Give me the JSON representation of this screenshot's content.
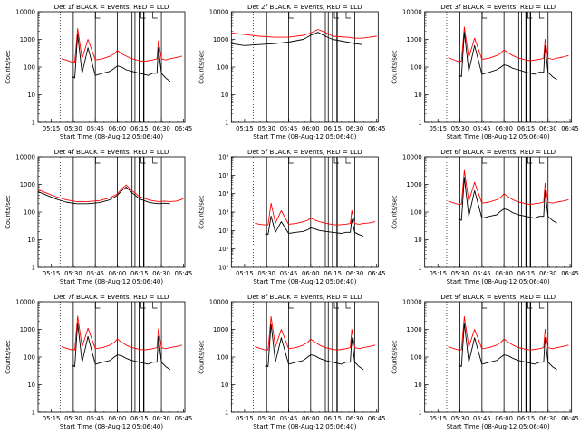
{
  "figure": {
    "colors": {
      "events": "#000000",
      "lld": "#ff0000",
      "axis": "#000000",
      "background": "#ffffff"
    }
  },
  "chart_data": [
    {
      "type": "line",
      "title": "Det 1f BLACK = Events, RED = LLD",
      "xlabel": "Start Time (08-Aug-12 05:06:40)",
      "ylabel": "Counts/sec",
      "yscale": "log",
      "ylim": [
        1,
        10000
      ],
      "ytick_labels": [
        "1",
        "10",
        "100",
        "1000",
        "10000"
      ],
      "xtick_labels": [
        "05:15",
        "05:30",
        "05:45",
        "06:00",
        "06:15",
        "06:30",
        "06:45"
      ],
      "x": [
        "05:22",
        "05:25",
        "05:29",
        "05:30",
        "05:31",
        "05:33",
        "05:36",
        "05:40",
        "05:45",
        "05:50",
        "05:55",
        "05:58",
        "06:00",
        "06:03",
        "06:06",
        "06:10",
        "06:15",
        "06:18",
        "06:21",
        "06:24",
        "06:27",
        "06:28",
        "06:30",
        "06:33",
        "06:36",
        "06:40",
        "06:44"
      ],
      "series": [
        {
          "name": "Events",
          "color": "#000000",
          "values": [
            null,
            null,
            40,
            45,
            40,
            1500,
            60,
            500,
            50,
            60,
            70,
            90,
            110,
            100,
            80,
            70,
            60,
            55,
            50,
            60,
            60,
            500,
            60,
            40,
            30,
            null,
            null
          ]
        },
        {
          "name": "LLD",
          "color": "#ff0000",
          "values": [
            200,
            180,
            150,
            160,
            150,
            2500,
            200,
            1000,
            180,
            200,
            250,
            300,
            400,
            300,
            250,
            200,
            170,
            160,
            170,
            180,
            200,
            900,
            200,
            180,
            200,
            220,
            250
          ]
        }
      ]
    },
    {
      "type": "line",
      "title": "Det 2f BLACK = Events, RED = LLD",
      "xlabel": "Start Time (08-Aug-12 05:06:40)",
      "ylabel": "Counts/sec",
      "yscale": "log",
      "ylim": [
        1,
        10000
      ],
      "ytick_labels": [
        "1",
        "10",
        "100",
        "1000",
        "10000"
      ],
      "xtick_labels": [
        "05:15",
        "05:30",
        "05:45",
        "06:00",
        "06:15",
        "06:30",
        "06:45"
      ],
      "x": [
        "05:06",
        "05:15",
        "05:25",
        "05:35",
        "05:45",
        "05:55",
        "06:00",
        "06:05",
        "06:10",
        "06:15",
        "06:25",
        "06:30",
        "06:35",
        "06:40",
        "06:45"
      ],
      "series": [
        {
          "name": "Events",
          "color": "#000000",
          "values": [
            700,
            600,
            650,
            700,
            800,
            1000,
            1400,
            1800,
            1300,
            1000,
            800,
            700,
            650,
            null,
            null
          ]
        },
        {
          "name": "LLD",
          "color": "#ff0000",
          "values": [
            1700,
            1500,
            1300,
            1200,
            1200,
            1400,
            1700,
            2300,
            1800,
            1300,
            1200,
            1100,
            1100,
            1200,
            1300
          ]
        }
      ]
    },
    {
      "type": "line",
      "title": "Det 3f BLACK = Events, RED = LLD",
      "xlabel": "Start Time (08-Aug-12 05:06:40)",
      "ylabel": "Counts/sec",
      "yscale": "log",
      "ylim": [
        1,
        10000
      ],
      "ytick_labels": [
        "1",
        "10",
        "100",
        "1000",
        "10000"
      ],
      "xtick_labels": [
        "05:15",
        "05:30",
        "05:45",
        "06:00",
        "06:15",
        "06:30",
        "06:45"
      ],
      "x": [
        "05:22",
        "05:25",
        "05:29",
        "05:30",
        "05:31",
        "05:33",
        "05:36",
        "05:40",
        "05:45",
        "05:50",
        "05:55",
        "05:58",
        "06:00",
        "06:03",
        "06:06",
        "06:10",
        "06:15",
        "06:18",
        "06:21",
        "06:24",
        "06:27",
        "06:28",
        "06:30",
        "06:33",
        "06:36",
        "06:40",
        "06:44"
      ],
      "series": [
        {
          "name": "Events",
          "color": "#000000",
          "values": [
            null,
            null,
            45,
            50,
            45,
            1800,
            70,
            600,
            55,
            65,
            80,
            100,
            120,
            110,
            90,
            80,
            65,
            60,
            55,
            65,
            65,
            600,
            65,
            45,
            35,
            null,
            null
          ]
        },
        {
          "name": "LLD",
          "color": "#ff0000",
          "values": [
            220,
            190,
            160,
            170,
            160,
            2800,
            220,
            1100,
            190,
            210,
            260,
            320,
            420,
            320,
            260,
            210,
            180,
            170,
            180,
            190,
            210,
            1000,
            210,
            190,
            210,
            230,
            260
          ]
        }
      ]
    },
    {
      "type": "line",
      "title": "Det 4f BLACK = Events, RED = LLD",
      "xlabel": "Start Time (08-Aug-12 05:06:40)",
      "ylabel": "Counts/sec",
      "yscale": "log",
      "ylim": [
        1,
        10000
      ],
      "ytick_labels": [
        "1",
        "10",
        "100",
        "1000",
        "10000"
      ],
      "xtick_labels": [
        "05:15",
        "05:30",
        "05:45",
        "06:00",
        "06:15",
        "06:30",
        "06:45"
      ],
      "x": [
        "05:06",
        "05:12",
        "05:18",
        "05:25",
        "05:32",
        "05:40",
        "05:48",
        "05:55",
        "06:00",
        "06:03",
        "06:06",
        "06:10",
        "06:15",
        "06:22",
        "06:28",
        "06:32",
        "06:36",
        "06:40",
        "06:45"
      ],
      "series": [
        {
          "name": "Events",
          "color": "#000000",
          "values": [
            550,
            400,
            300,
            230,
            200,
            200,
            220,
            280,
            400,
            600,
            800,
            500,
            300,
            220,
            200,
            210,
            200,
            null,
            null
          ]
        },
        {
          "name": "LLD",
          "color": "#ff0000",
          "values": [
            650,
            480,
            360,
            280,
            240,
            240,
            260,
            330,
            450,
            700,
            950,
            600,
            360,
            270,
            240,
            250,
            240,
            250,
            300
          ]
        }
      ]
    },
    {
      "type": "line",
      "title": "Det 5f BLACK = Events, RED = LLD",
      "xlabel": "Start Time (08-Aug-12 05:06:40)",
      "ylabel": "Counts/sec",
      "yscale": "log",
      "ylim": [
        1,
        1000000
      ],
      "ytick_labels": [
        "10⁰",
        "10¹",
        "10²",
        "10³",
        "10⁴",
        "10⁵",
        "10⁶"
      ],
      "xtick_labels": [
        "05:15",
        "05:30",
        "05:45",
        "06:00",
        "06:15",
        "06:30",
        "06:45"
      ],
      "x": [
        "05:22",
        "05:25",
        "05:29",
        "05:30",
        "05:31",
        "05:33",
        "05:36",
        "05:40",
        "05:45",
        "05:50",
        "05:55",
        "05:58",
        "06:00",
        "06:03",
        "06:06",
        "06:10",
        "06:15",
        "06:18",
        "06:21",
        "06:24",
        "06:27",
        "06:28",
        "06:30",
        "06:33",
        "06:36",
        "06:40",
        "06:44"
      ],
      "series": [
        {
          "name": "Events",
          "color": "#000000",
          "values": [
            null,
            null,
            60,
            70,
            60,
            600,
            80,
            300,
            70,
            80,
            90,
            110,
            140,
            120,
            100,
            90,
            80,
            75,
            70,
            80,
            80,
            400,
            80,
            60,
            50,
            null,
            null
          ]
        },
        {
          "name": "LLD",
          "color": "#ff0000",
          "values": [
            250,
            220,
            200,
            210,
            200,
            3000,
            250,
            1200,
            220,
            240,
            300,
            360,
            480,
            360,
            300,
            250,
            210,
            200,
            210,
            220,
            240,
            1200,
            240,
            220,
            240,
            260,
            300
          ]
        }
      ]
    },
    {
      "type": "line",
      "title": "Det 6f BLACK = Events, RED = LLD",
      "xlabel": "Start Time (08-Aug-12 05:06:40)",
      "ylabel": "Counts/sec",
      "yscale": "log",
      "ylim": [
        1,
        10000
      ],
      "ytick_labels": [
        "1",
        "10",
        "100",
        "1000",
        "10000"
      ],
      "xtick_labels": [
        "05:15",
        "05:30",
        "05:45",
        "06:00",
        "06:15",
        "06:30",
        "06:45"
      ],
      "x": [
        "05:22",
        "05:25",
        "05:29",
        "05:30",
        "05:31",
        "05:33",
        "05:36",
        "05:40",
        "05:45",
        "05:50",
        "05:55",
        "05:58",
        "06:00",
        "06:03",
        "06:06",
        "06:10",
        "06:15",
        "06:18",
        "06:21",
        "06:24",
        "06:27",
        "06:28",
        "06:30",
        "06:33",
        "06:36",
        "06:40",
        "06:44"
      ],
      "series": [
        {
          "name": "Events",
          "color": "#000000",
          "values": [
            null,
            null,
            50,
            55,
            50,
            1800,
            70,
            600,
            60,
            70,
            80,
            110,
            130,
            120,
            95,
            80,
            70,
            65,
            60,
            70,
            70,
            600,
            70,
            50,
            40,
            null,
            null
          ]
        },
        {
          "name": "LLD",
          "color": "#ff0000",
          "values": [
            250,
            220,
            190,
            200,
            190,
            3200,
            240,
            1200,
            210,
            230,
            280,
            350,
            460,
            350,
            280,
            230,
            200,
            190,
            200,
            210,
            230,
            1100,
            230,
            210,
            230,
            250,
            280
          ]
        }
      ]
    },
    {
      "type": "line",
      "title": "Det 7f BLACK = Events, RED = LLD",
      "xlabel": "Start Time (08-Aug-12 05:06:40)",
      "ylabel": "Counts/sec",
      "yscale": "log",
      "ylim": [
        1,
        10000
      ],
      "ytick_labels": [
        "1",
        "10",
        "100",
        "1000",
        "10000"
      ],
      "xtick_labels": [
        "05:15",
        "05:30",
        "05:45",
        "06:00",
        "06:15",
        "06:30",
        "06:45"
      ],
      "x": [
        "05:22",
        "05:25",
        "05:29",
        "05:30",
        "05:31",
        "05:33",
        "05:36",
        "05:40",
        "05:45",
        "05:50",
        "05:55",
        "05:58",
        "06:00",
        "06:03",
        "06:06",
        "06:10",
        "06:15",
        "06:18",
        "06:21",
        "06:24",
        "06:27",
        "06:28",
        "06:30",
        "06:33",
        "06:36",
        "06:40",
        "06:44"
      ],
      "series": [
        {
          "name": "Events",
          "color": "#000000",
          "values": [
            null,
            null,
            45,
            50,
            45,
            1700,
            65,
            550,
            55,
            65,
            75,
            100,
            120,
            110,
            90,
            75,
            65,
            60,
            55,
            65,
            65,
            550,
            65,
            45,
            35,
            null,
            null
          ]
        },
        {
          "name": "LLD",
          "color": "#ff0000",
          "values": [
            240,
            210,
            180,
            190,
            180,
            3000,
            230,
            1100,
            200,
            220,
            270,
            340,
            450,
            340,
            270,
            220,
            190,
            180,
            190,
            200,
            220,
            1050,
            220,
            200,
            220,
            240,
            270
          ]
        }
      ]
    },
    {
      "type": "line",
      "title": "Det 8f BLACK = Events, RED = LLD",
      "xlabel": "Start Time (08-Aug-12 05:06:40)",
      "ylabel": "Counts/sec",
      "yscale": "log",
      "ylim": [
        1,
        10000
      ],
      "ytick_labels": [
        "1",
        "10",
        "100",
        "1000",
        "10000"
      ],
      "xtick_labels": [
        "05:15",
        "05:30",
        "05:45",
        "06:00",
        "06:15",
        "06:30",
        "06:45"
      ],
      "x": [
        "05:22",
        "05:25",
        "05:29",
        "05:30",
        "05:31",
        "05:33",
        "05:36",
        "05:40",
        "05:45",
        "05:50",
        "05:55",
        "05:58",
        "06:00",
        "06:03",
        "06:06",
        "06:10",
        "06:15",
        "06:18",
        "06:21",
        "06:24",
        "06:27",
        "06:28",
        "06:30",
        "06:33",
        "06:36",
        "06:40",
        "06:44"
      ],
      "series": [
        {
          "name": "Events",
          "color": "#000000",
          "values": [
            null,
            null,
            45,
            50,
            45,
            1600,
            65,
            500,
            55,
            65,
            75,
            100,
            120,
            110,
            90,
            75,
            65,
            60,
            55,
            65,
            65,
            500,
            65,
            45,
            35,
            null,
            null
          ]
        },
        {
          "name": "LLD",
          "color": "#ff0000",
          "values": [
            240,
            210,
            180,
            190,
            180,
            2900,
            230,
            1000,
            200,
            220,
            270,
            340,
            450,
            340,
            270,
            220,
            190,
            180,
            190,
            200,
            220,
            1000,
            220,
            200,
            220,
            240,
            270
          ]
        }
      ]
    },
    {
      "type": "line",
      "title": "Det 9f BLACK = Events, RED = LLD",
      "xlabel": "Start Time (08-Aug-12 05:06:40)",
      "ylabel": "Counts/sec",
      "yscale": "log",
      "ylim": [
        1,
        10000
      ],
      "ytick_labels": [
        "1",
        "10",
        "100",
        "1000",
        "10000"
      ],
      "xtick_labels": [
        "05:15",
        "05:30",
        "05:45",
        "06:00",
        "06:15",
        "06:30",
        "06:45"
      ],
      "x": [
        "05:22",
        "05:25",
        "05:29",
        "05:30",
        "05:31",
        "05:33",
        "05:36",
        "05:40",
        "05:45",
        "05:50",
        "05:55",
        "05:58",
        "06:00",
        "06:03",
        "06:06",
        "06:10",
        "06:15",
        "06:18",
        "06:21",
        "06:24",
        "06:27",
        "06:28",
        "06:30",
        "06:33",
        "06:36",
        "06:40",
        "06:44"
      ],
      "series": [
        {
          "name": "Events",
          "color": "#000000",
          "values": [
            null,
            null,
            45,
            50,
            45,
            1700,
            65,
            500,
            55,
            65,
            75,
            100,
            120,
            110,
            90,
            75,
            65,
            60,
            55,
            65,
            65,
            500,
            65,
            45,
            35,
            null,
            null
          ]
        },
        {
          "name": "LLD",
          "color": "#ff0000",
          "values": [
            240,
            210,
            180,
            190,
            180,
            2900,
            230,
            1000,
            200,
            220,
            270,
            340,
            450,
            340,
            270,
            220,
            190,
            180,
            190,
            200,
            220,
            1000,
            220,
            200,
            220,
            240,
            270
          ]
        }
      ]
    }
  ]
}
